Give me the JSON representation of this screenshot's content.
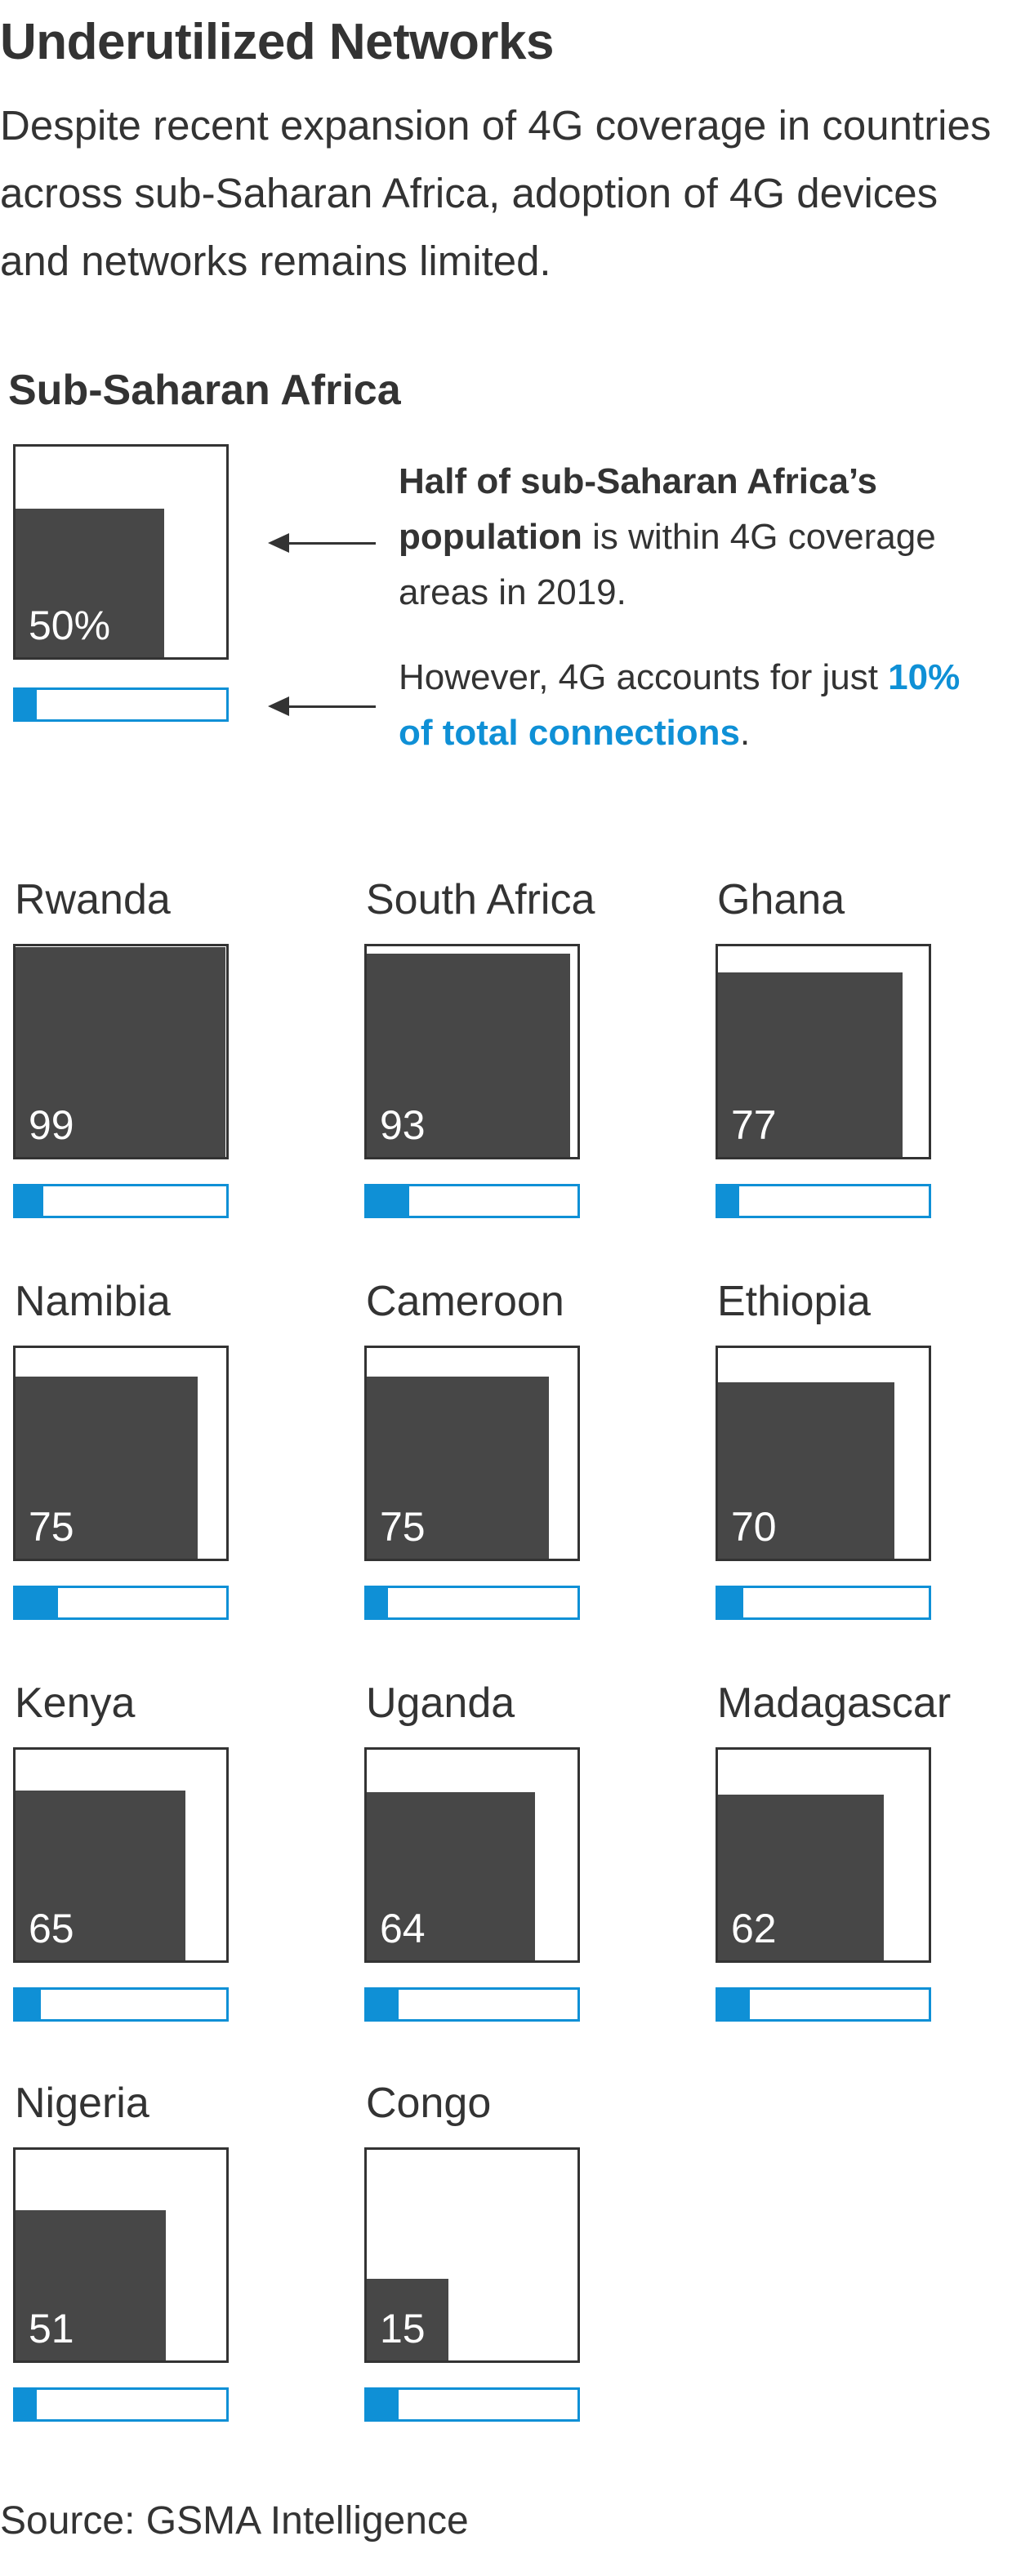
{
  "title": "Underutilized Networks",
  "dek": "Despite recent expansion of 4G coverage in countries across sub-Saharan Africa, adoption of 4G devices and networks remains limited.",
  "region": {
    "name": "Sub-Saharan Africa",
    "coverage_label": "50%",
    "note1_bold": "Half of sub-Saharan Africa’s population",
    "note1_rest": " is within 4G coverage areas in 2019.",
    "note2_start": "However, 4G accounts for just ",
    "note2_highlight": "10% of total connections",
    "note2_end": "."
  },
  "source": "Source: GSMA Intelligence",
  "colors": {
    "coverage": "#474747",
    "connections": "#0f90d6",
    "outline": "#333333"
  },
  "chart_data": {
    "type": "bar",
    "region": {
      "name": "Sub-Saharan Africa",
      "coverage_pct": 50,
      "connections_4g_pct": 10
    },
    "categories": [
      "Rwanda",
      "South Africa",
      "Ghana",
      "Namibia",
      "Cameroon",
      "Ethiopia",
      "Kenya",
      "Uganda",
      "Madagascar",
      "Nigeria",
      "Congo"
    ],
    "series": [
      {
        "name": "4G coverage",
        "values": [
          99,
          93,
          77,
          75,
          75,
          70,
          65,
          64,
          62,
          51,
          15
        ]
      },
      {
        "name": "4G connections",
        "values": [
          13,
          20,
          10,
          20,
          10,
          12,
          12,
          15,
          15,
          10,
          15
        ]
      }
    ],
    "ylim": [
      0,
      100
    ]
  }
}
